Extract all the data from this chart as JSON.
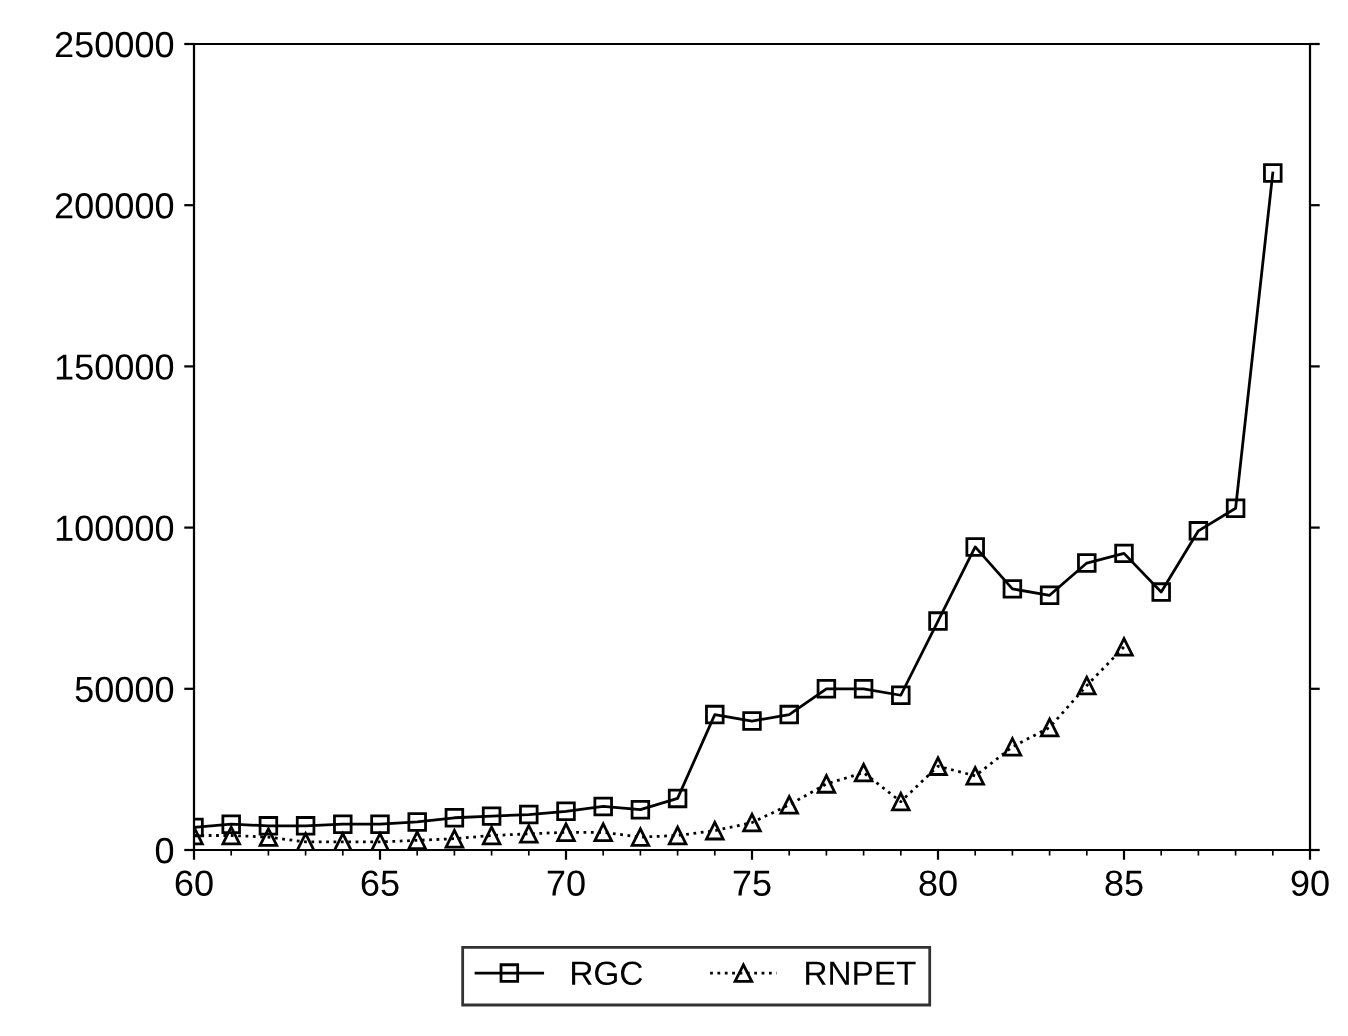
{
  "chart_data": {
    "type": "line",
    "x": [
      60,
      61,
      62,
      63,
      64,
      65,
      66,
      67,
      68,
      69,
      70,
      71,
      72,
      73,
      74,
      75,
      76,
      77,
      78,
      79,
      80,
      81,
      82,
      83,
      84,
      85,
      86,
      87,
      88,
      89
    ],
    "series": [
      {
        "name": "RGC",
        "color": "#000000",
        "marker": "square",
        "line_style": "solid",
        "values": [
          7000,
          8000,
          7500,
          7500,
          8000,
          8000,
          8700,
          10000,
          10500,
          11000,
          12000,
          13500,
          12500,
          16000,
          42000,
          40000,
          42000,
          50000,
          50000,
          48000,
          71000,
          94000,
          81000,
          79000,
          89000,
          92000,
          80000,
          99000,
          106000,
          210000
        ]
      },
      {
        "name": "RNPET",
        "color": "#000000",
        "marker": "triangle",
        "line_style": "dotted",
        "values": [
          4500,
          4500,
          4000,
          2500,
          2500,
          2500,
          3000,
          3500,
          4500,
          5000,
          5500,
          5500,
          4000,
          4500,
          6000,
          8500,
          14000,
          20500,
          24000,
          15000,
          26000,
          23000,
          32000,
          38000,
          51000,
          63000,
          null,
          null,
          null,
          null
        ]
      }
    ],
    "xlim": [
      60,
      90
    ],
    "xticks": [
      60,
      65,
      70,
      75,
      80,
      85,
      90
    ],
    "ylim": [
      0,
      250000
    ],
    "yticks": [
      0,
      50000,
      100000,
      150000,
      200000,
      250000
    ],
    "grid": false,
    "legend": "bottom"
  }
}
